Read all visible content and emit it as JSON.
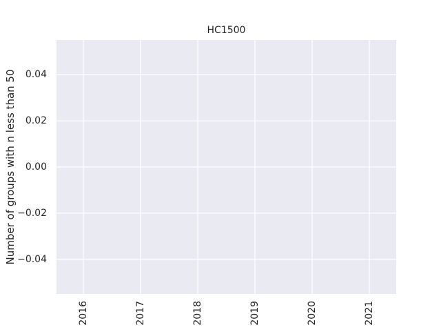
{
  "chart_data": {
    "type": "line",
    "title": "HC1500",
    "xlabel": "",
    "ylabel": "Number of groups with n less than 50",
    "x_ticks": [
      "2016",
      "2017",
      "2018",
      "2019",
      "2020",
      "2021"
    ],
    "y_ticks": [
      "0.04",
      "0.02",
      "0.00",
      "−0.02",
      "−0.04"
    ],
    "y_tick_values": [
      0.04,
      0.02,
      0.0,
      -0.02,
      -0.04
    ],
    "ylim": [
      -0.055,
      0.055
    ],
    "xlim": [
      2015.53,
      2021.47
    ],
    "x_tick_values": [
      2016,
      2017,
      2018,
      2019,
      2020,
      2021
    ],
    "series": [],
    "grid": true,
    "x_tick_rotation": "vertical",
    "colors": {
      "axes_bg": "#eaeaf2",
      "grid": "#ffffff",
      "text": "#262626"
    }
  }
}
